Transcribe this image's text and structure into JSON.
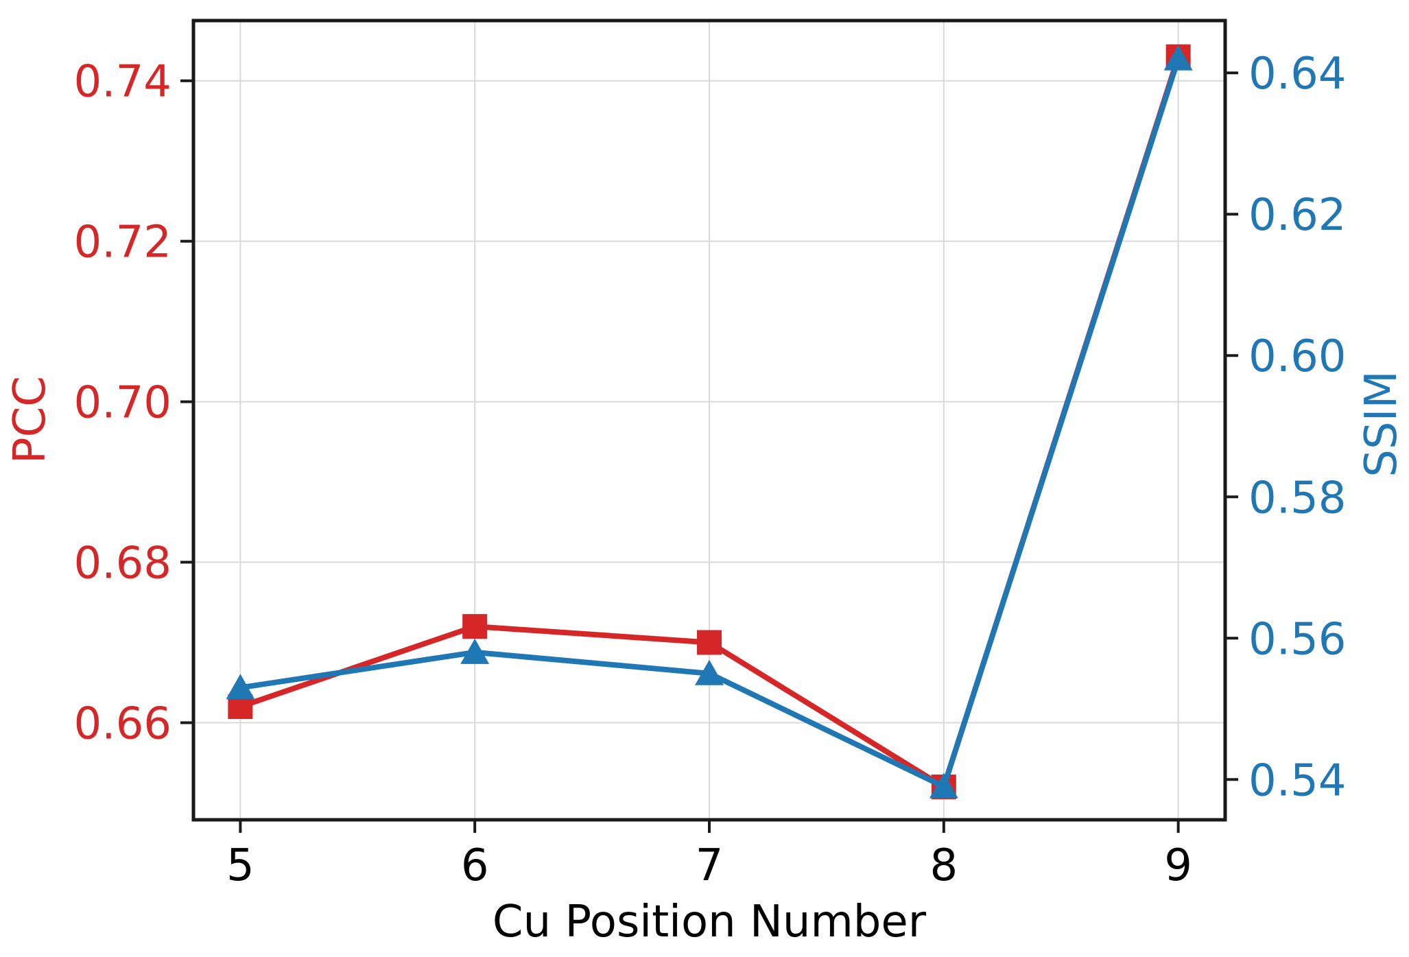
{
  "chart_data": {
    "type": "line",
    "title": "",
    "x": [
      5,
      6,
      7,
      8,
      9
    ],
    "x_axis": {
      "label": "Cu Position Number",
      "color": "#000000",
      "ticks": [
        5,
        6,
        7,
        8,
        9
      ],
      "tick_labels": [
        "5",
        "6",
        "7",
        "8",
        "9"
      ],
      "range": [
        4.8,
        9.2
      ]
    },
    "left_axis": {
      "label": "PCC",
      "color": "#d62728",
      "ticks": [
        0.74,
        0.72,
        0.7,
        0.68,
        0.66
      ],
      "tick_labels": [
        "0.74",
        "0.72",
        "0.70",
        "0.68",
        "0.66"
      ],
      "range": [
        0.6479,
        0.7475
      ]
    },
    "right_axis": {
      "label": "SSIM",
      "color": "#1f77b4",
      "ticks": [
        0.64,
        0.62,
        0.6,
        0.58,
        0.56,
        0.54
      ],
      "tick_labels": [
        "0.64",
        "0.62",
        "0.60",
        "0.58",
        "0.56",
        "0.54"
      ],
      "range": [
        0.5343,
        0.6474
      ]
    },
    "series": [
      {
        "name": "PCC",
        "axis": "left",
        "color": "#d62728",
        "marker": "square",
        "values": [
          0.662,
          0.672,
          0.67,
          0.652,
          0.743
        ]
      },
      {
        "name": "SSIM",
        "axis": "right",
        "color": "#1f77b4",
        "marker": "triangle-up",
        "values": [
          0.553,
          0.558,
          0.555,
          0.539,
          0.642
        ]
      }
    ],
    "grid": true,
    "legend": "none",
    "styles": {
      "background": "#ffffff",
      "grid_color": "#d9d9d9",
      "spine_color": "#1a1a1a",
      "tick_color": "#1a1a1a"
    }
  }
}
